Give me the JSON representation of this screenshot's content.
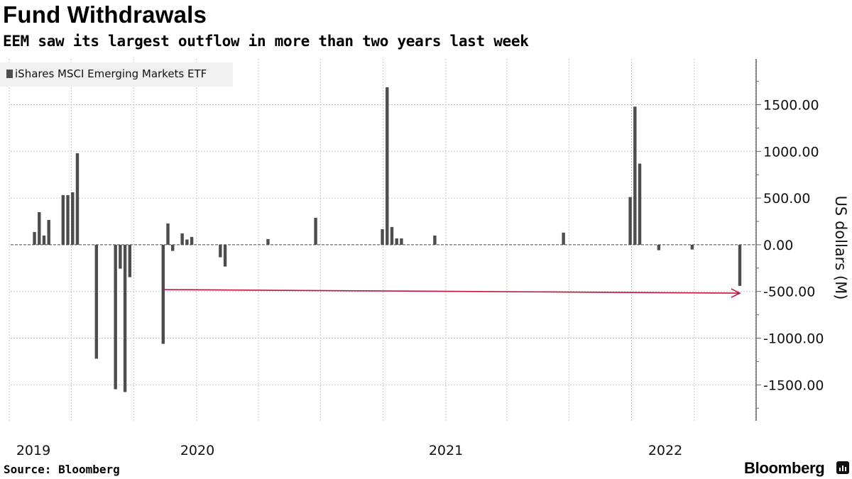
{
  "chart_data": {
    "type": "bar",
    "title": "Fund Withdrawals",
    "subtitle": "EEM saw its largest outflow in more than two years last week",
    "ylabel": "US dollars (M)",
    "xlabel": "",
    "legend": {
      "position": "top-left",
      "entries": [
        "iShares MSCI Emerging Markets ETF"
      ]
    },
    "ylim": [
      -1885,
      1990
    ],
    "xlim": [
      "2019-04-03",
      "2022-04-02"
    ],
    "grid": true,
    "y_ticks": [
      "1500.00",
      "1000.00",
      "500.00",
      "0.00",
      "-500.00",
      "-1000.00",
      "-1500.00"
    ],
    "y_tick_values": [
      1500,
      1000,
      500,
      0,
      -500,
      -1000,
      -1500
    ],
    "x_ticks": [
      "2019",
      "2020",
      "2021",
      "2022"
    ],
    "series": [
      {
        "name": "iShares MSCI Emerging Markets ETF",
        "color": "#4d4d4d",
        "points": [
          [
            "2019-05-08",
            137
          ],
          [
            "2019-05-15",
            349
          ],
          [
            "2019-05-22",
            99
          ],
          [
            "2019-05-29",
            266
          ],
          [
            "2019-06-19",
            532
          ],
          [
            "2019-06-26",
            532
          ],
          [
            "2019-07-03",
            562
          ],
          [
            "2019-07-10",
            980
          ],
          [
            "2019-08-07",
            -1220
          ],
          [
            "2019-09-04",
            -1547
          ],
          [
            "2019-09-11",
            -256
          ],
          [
            "2019-09-18",
            -1577
          ],
          [
            "2019-09-25",
            -347
          ],
          [
            "2019-11-13",
            -1061
          ],
          [
            "2019-11-20",
            228
          ],
          [
            "2019-11-27",
            -66
          ],
          [
            "2019-12-11",
            122
          ],
          [
            "2019-12-18",
            56
          ],
          [
            "2019-12-25",
            84
          ],
          [
            "2020-02-05",
            -134
          ],
          [
            "2020-02-12",
            -233
          ],
          [
            "2020-04-15",
            61
          ],
          [
            "2020-06-24",
            289
          ],
          [
            "2020-09-30",
            167
          ],
          [
            "2020-10-07",
            1686
          ],
          [
            "2020-10-14",
            190
          ],
          [
            "2020-10-21",
            68
          ],
          [
            "2020-10-28",
            68
          ],
          [
            "2020-12-16",
            99
          ],
          [
            "2021-06-23",
            130
          ],
          [
            "2021-09-29",
            511
          ],
          [
            "2021-10-06",
            1479
          ],
          [
            "2021-10-13",
            869
          ],
          [
            "2021-11-10",
            -58
          ],
          [
            "2021-12-29",
            -51
          ],
          [
            "2022-03-09",
            -440
          ]
        ]
      }
    ],
    "annotations": [
      {
        "type": "arrow",
        "color": "#c0143c",
        "from": [
          "2019-11-13",
          -480
        ],
        "to": [
          "2022-03-09",
          -518
        ]
      }
    ]
  },
  "footer": {
    "source": "Source: Bloomberg",
    "logo": "Bloomberg"
  }
}
